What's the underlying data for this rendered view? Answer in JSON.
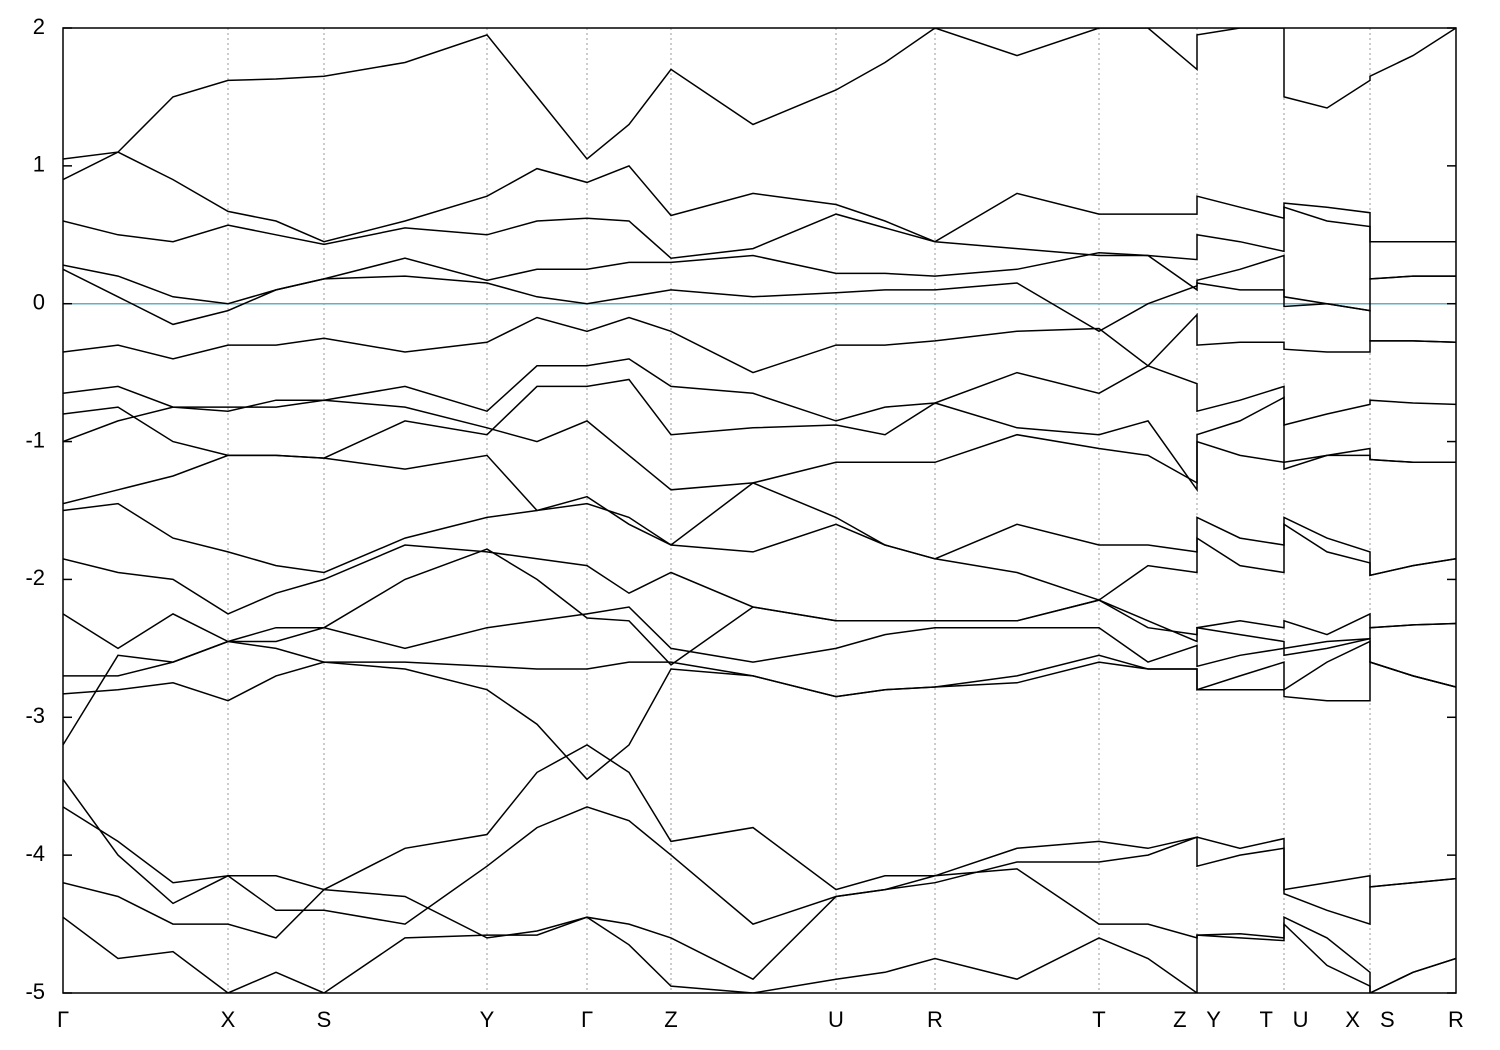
{
  "chart_data": {
    "type": "line",
    "color": "#000000",
    "x": [
      0,
      55,
      110,
      165,
      213,
      261,
      342,
      424,
      474,
      524,
      566,
      608,
      690,
      773,
      822,
      872,
      954,
      1036,
      1085,
      1134,
      1134,
      1177,
      1221,
      1221,
      1264,
      1307,
      1307,
      1350,
      1393
    ],
    "xlim": [
      0,
      1393
    ],
    "xticks": [
      {
        "value": 0,
        "label": "Γ"
      },
      {
        "value": 165,
        "label": "X"
      },
      {
        "value": 261,
        "label": "S"
      },
      {
        "value": 424,
        "label": "Y"
      },
      {
        "value": 524,
        "label": "Γ"
      },
      {
        "value": 608,
        "label": "Z"
      },
      {
        "value": 773,
        "label": "U"
      },
      {
        "value": 872,
        "label": "R"
      },
      {
        "value": 1036,
        "label": "T"
      },
      {
        "value": 1134,
        "label": "Z Y"
      },
      {
        "value": 1221,
        "label": "T U"
      },
      {
        "value": 1307,
        "label": "X S"
      },
      {
        "value": 1393,
        "label": "R"
      }
    ],
    "ylim": [
      -5,
      2
    ],
    "yticks": [
      -5,
      -4,
      -3,
      -2,
      -1,
      0,
      1,
      2
    ],
    "grid": true,
    "hlines": [
      {
        "value": 0,
        "color": "#5fb1c6"
      }
    ],
    "series": [
      {
        "values": [
          1.05,
          1.1,
          1.5,
          1.62,
          1.63,
          1.65,
          1.75,
          1.95,
          1.5,
          1.05,
          1.3,
          1.7,
          1.3,
          1.55,
          1.75,
          2.0,
          1.8,
          2.0,
          2.0,
          1.7,
          1.95,
          2.0,
          2.0,
          1.5,
          1.42,
          1.62,
          1.65,
          1.8,
          2.0
        ]
      },
      {
        "values": [
          0.9,
          1.1,
          0.9,
          0.67,
          0.6,
          0.45,
          0.6,
          0.78,
          0.98,
          0.88,
          1.0,
          0.64,
          0.8,
          0.72,
          0.6,
          0.45,
          0.8,
          0.65,
          0.65,
          0.65,
          0.78,
          0.7,
          0.62,
          0.73,
          0.7,
          0.66,
          0.45,
          0.45,
          0.45
        ]
      },
      {
        "values": [
          0.6,
          0.5,
          0.45,
          0.57,
          0.5,
          0.43,
          0.55,
          0.5,
          0.6,
          0.62,
          0.6,
          0.33,
          0.4,
          0.65,
          0.55,
          0.45,
          0.4,
          0.35,
          0.35,
          0.32,
          0.5,
          0.45,
          0.38,
          0.7,
          0.6,
          0.56,
          0.18,
          0.2,
          0.2
        ]
      },
      {
        "values": [
          0.28,
          0.2,
          0.05,
          0.0,
          0.1,
          0.18,
          0.33,
          0.17,
          0.25,
          0.25,
          0.3,
          0.3,
          0.35,
          0.22,
          0.22,
          0.2,
          0.25,
          0.37,
          0.35,
          0.1,
          0.17,
          0.25,
          0.35,
          0.05,
          0.0,
          -0.05,
          0.18,
          0.2,
          0.2
        ]
      },
      {
        "values": [
          0.25,
          0.05,
          -0.15,
          -0.05,
          0.1,
          0.18,
          0.2,
          0.15,
          0.05,
          0.0,
          0.05,
          0.1,
          0.05,
          0.08,
          0.1,
          0.1,
          0.15,
          -0.2,
          0.0,
          0.13,
          0.15,
          0.1,
          0.1,
          -0.02,
          0.0,
          -0.05,
          -0.27,
          -0.27,
          -0.28
        ]
      },
      {
        "values": [
          -0.35,
          -0.3,
          -0.4,
          -0.3,
          -0.3,
          -0.25,
          -0.35,
          -0.28,
          -0.1,
          -0.2,
          -0.1,
          -0.2,
          -0.5,
          -0.3,
          -0.3,
          -0.27,
          -0.2,
          -0.18,
          -0.45,
          -0.08,
          -0.3,
          -0.28,
          -0.28,
          -0.33,
          -0.35,
          -0.35,
          -0.27,
          -0.27,
          -0.28
        ]
      },
      {
        "values": [
          -0.65,
          -0.6,
          -0.75,
          -0.78,
          -0.7,
          -0.7,
          -0.6,
          -0.78,
          -0.45,
          -0.45,
          -0.4,
          -0.6,
          -0.65,
          -0.85,
          -0.75,
          -0.72,
          -0.5,
          -0.65,
          -0.45,
          -0.58,
          -0.78,
          -0.7,
          -0.6,
          -0.88,
          -0.8,
          -0.73,
          -0.7,
          -0.72,
          -0.73
        ]
      },
      {
        "values": [
          -0.8,
          -0.75,
          -1.0,
          -1.1,
          -1.1,
          -1.12,
          -0.85,
          -0.95,
          -0.6,
          -0.6,
          -0.55,
          -0.95,
          -0.9,
          -0.88,
          -0.95,
          -0.72,
          -0.9,
          -0.95,
          -0.85,
          -1.35,
          -0.95,
          -0.85,
          -0.68,
          -1.2,
          -1.1,
          -1.05,
          -1.13,
          -1.15,
          -1.15
        ]
      },
      {
        "values": [
          -1.0,
          -0.85,
          -0.75,
          -0.75,
          -0.75,
          -0.7,
          -0.75,
          -0.9,
          -1.0,
          -0.85,
          -1.1,
          -1.35,
          -1.3,
          -1.15,
          -1.15,
          -1.15,
          -0.95,
          -1.05,
          -1.1,
          -1.3,
          -1.0,
          -1.1,
          -1.15,
          -1.15,
          -1.1,
          -1.1,
          -1.13,
          -1.15,
          -1.15
        ]
      },
      {
        "values": [
          -1.45,
          -1.35,
          -1.25,
          -1.1,
          -1.1,
          -1.12,
          -1.2,
          -1.1,
          -1.5,
          -1.45,
          -1.55,
          -1.75,
          -1.3,
          -1.55,
          -1.75,
          -1.85,
          -1.6,
          -1.75,
          -1.75,
          -1.8,
          -1.55,
          -1.7,
          -1.75,
          -1.55,
          -1.7,
          -1.8,
          -1.97,
          -1.9,
          -1.85
        ]
      },
      {
        "values": [
          -1.5,
          -1.45,
          -1.7,
          -1.8,
          -1.9,
          -1.95,
          -1.7,
          -1.55,
          -1.5,
          -1.4,
          -1.6,
          -1.75,
          -1.8,
          -1.6,
          -1.75,
          -1.85,
          -1.95,
          -2.15,
          -1.9,
          -1.95,
          -1.7,
          -1.9,
          -1.95,
          -1.6,
          -1.8,
          -1.88,
          -1.97,
          -1.9,
          -1.85
        ]
      },
      {
        "values": [
          -1.85,
          -1.95,
          -2.0,
          -2.25,
          -2.1,
          -2.0,
          -1.75,
          -1.8,
          -1.85,
          -1.9,
          -2.1,
          -1.95,
          -2.2,
          -2.3,
          -2.3,
          -2.3,
          -2.3,
          -2.15,
          -2.35,
          -2.4,
          -2.35,
          -2.3,
          -2.35,
          -2.3,
          -2.4,
          -2.25,
          -2.35,
          -2.33,
          -2.32
        ]
      },
      {
        "values": [
          -2.25,
          -2.5,
          -2.25,
          -2.45,
          -2.45,
          -2.35,
          -2.5,
          -2.35,
          -2.3,
          -2.25,
          -2.2,
          -2.5,
          -2.6,
          -2.5,
          -2.4,
          -2.35,
          -2.35,
          -2.35,
          -2.6,
          -2.48,
          -2.63,
          -2.55,
          -2.5,
          -2.5,
          -2.45,
          -2.43,
          -2.6,
          -2.7,
          -2.78
        ]
      },
      {
        "values": [
          -2.7,
          -2.7,
          -2.6,
          -2.45,
          -2.5,
          -2.6,
          -2.6,
          -2.63,
          -2.65,
          -2.65,
          -2.6,
          -2.6,
          -2.7,
          -2.85,
          -2.8,
          -2.78,
          -2.7,
          -2.55,
          -2.65,
          -2.65,
          -2.8,
          -2.7,
          -2.6,
          -2.8,
          -2.6,
          -2.45,
          -2.6,
          -2.7,
          -2.78
        ]
      },
      {
        "values": [
          -2.83,
          -2.8,
          -2.75,
          -2.88,
          -2.7,
          -2.6,
          -2.65,
          -2.8,
          -3.05,
          -3.45,
          -3.2,
          -2.65,
          -2.7,
          -2.85,
          -2.8,
          -2.78,
          -2.75,
          -2.6,
          -2.65,
          -2.65,
          -2.8,
          -2.8,
          -2.8,
          -2.85,
          -2.88,
          -2.88,
          -2.6,
          -2.7,
          -2.78
        ]
      },
      {
        "values": [
          -3.2,
          -2.55,
          -2.6,
          -2.45,
          -2.35,
          -2.35,
          -2.0,
          -1.78,
          -2.0,
          -2.28,
          -2.3,
          -2.62,
          -2.2,
          -2.3,
          -2.3,
          -2.3,
          -2.3,
          -2.15,
          -2.3,
          -2.45,
          -2.35,
          -2.4,
          -2.45,
          -2.55,
          -2.5,
          -2.43,
          -2.35,
          -2.33,
          -2.32
        ]
      },
      {
        "values": [
          -3.45,
          -4.0,
          -4.35,
          -4.15,
          -4.15,
          -4.25,
          -3.95,
          -3.85,
          -3.4,
          -3.2,
          -3.4,
          -3.9,
          -3.8,
          -4.25,
          -4.15,
          -4.15,
          -3.95,
          -3.9,
          -3.95,
          -3.87,
          -3.87,
          -3.95,
          -3.88,
          -4.25,
          -4.2,
          -4.15,
          -4.23,
          -4.2,
          -4.17
        ]
      },
      {
        "values": [
          -3.65,
          -3.9,
          -4.2,
          -4.15,
          -4.4,
          -4.4,
          -4.5,
          -4.08,
          -3.8,
          -3.65,
          -3.75,
          -4.0,
          -4.5,
          -4.3,
          -4.25,
          -4.2,
          -4.05,
          -4.05,
          -4.0,
          -3.87,
          -4.08,
          -4.0,
          -3.95,
          -4.28,
          -4.4,
          -4.5,
          -4.23,
          -4.2,
          -4.17
        ]
      },
      {
        "values": [
          -4.2,
          -4.3,
          -4.5,
          -4.5,
          -4.6,
          -4.25,
          -4.3,
          -4.6,
          -4.55,
          -4.45,
          -4.5,
          -4.6,
          -4.9,
          -4.3,
          -4.25,
          -4.15,
          -4.1,
          -4.5,
          -4.5,
          -4.6,
          -4.58,
          -4.57,
          -4.6,
          -4.5,
          -4.8,
          -4.95,
          -5.0,
          -4.85,
          -4.75
        ]
      },
      {
        "values": [
          -4.45,
          -4.75,
          -4.7,
          -5.0,
          -4.85,
          -5.0,
          -4.6,
          -4.58,
          -4.58,
          -4.45,
          -4.65,
          -4.95,
          -5.0,
          -4.9,
          -4.85,
          -4.75,
          -4.9,
          -4.6,
          -4.75,
          -5.0,
          -4.58,
          -4.6,
          -4.62,
          -4.45,
          -4.6,
          -4.85,
          -5.0,
          -4.85,
          -4.75
        ]
      }
    ]
  }
}
